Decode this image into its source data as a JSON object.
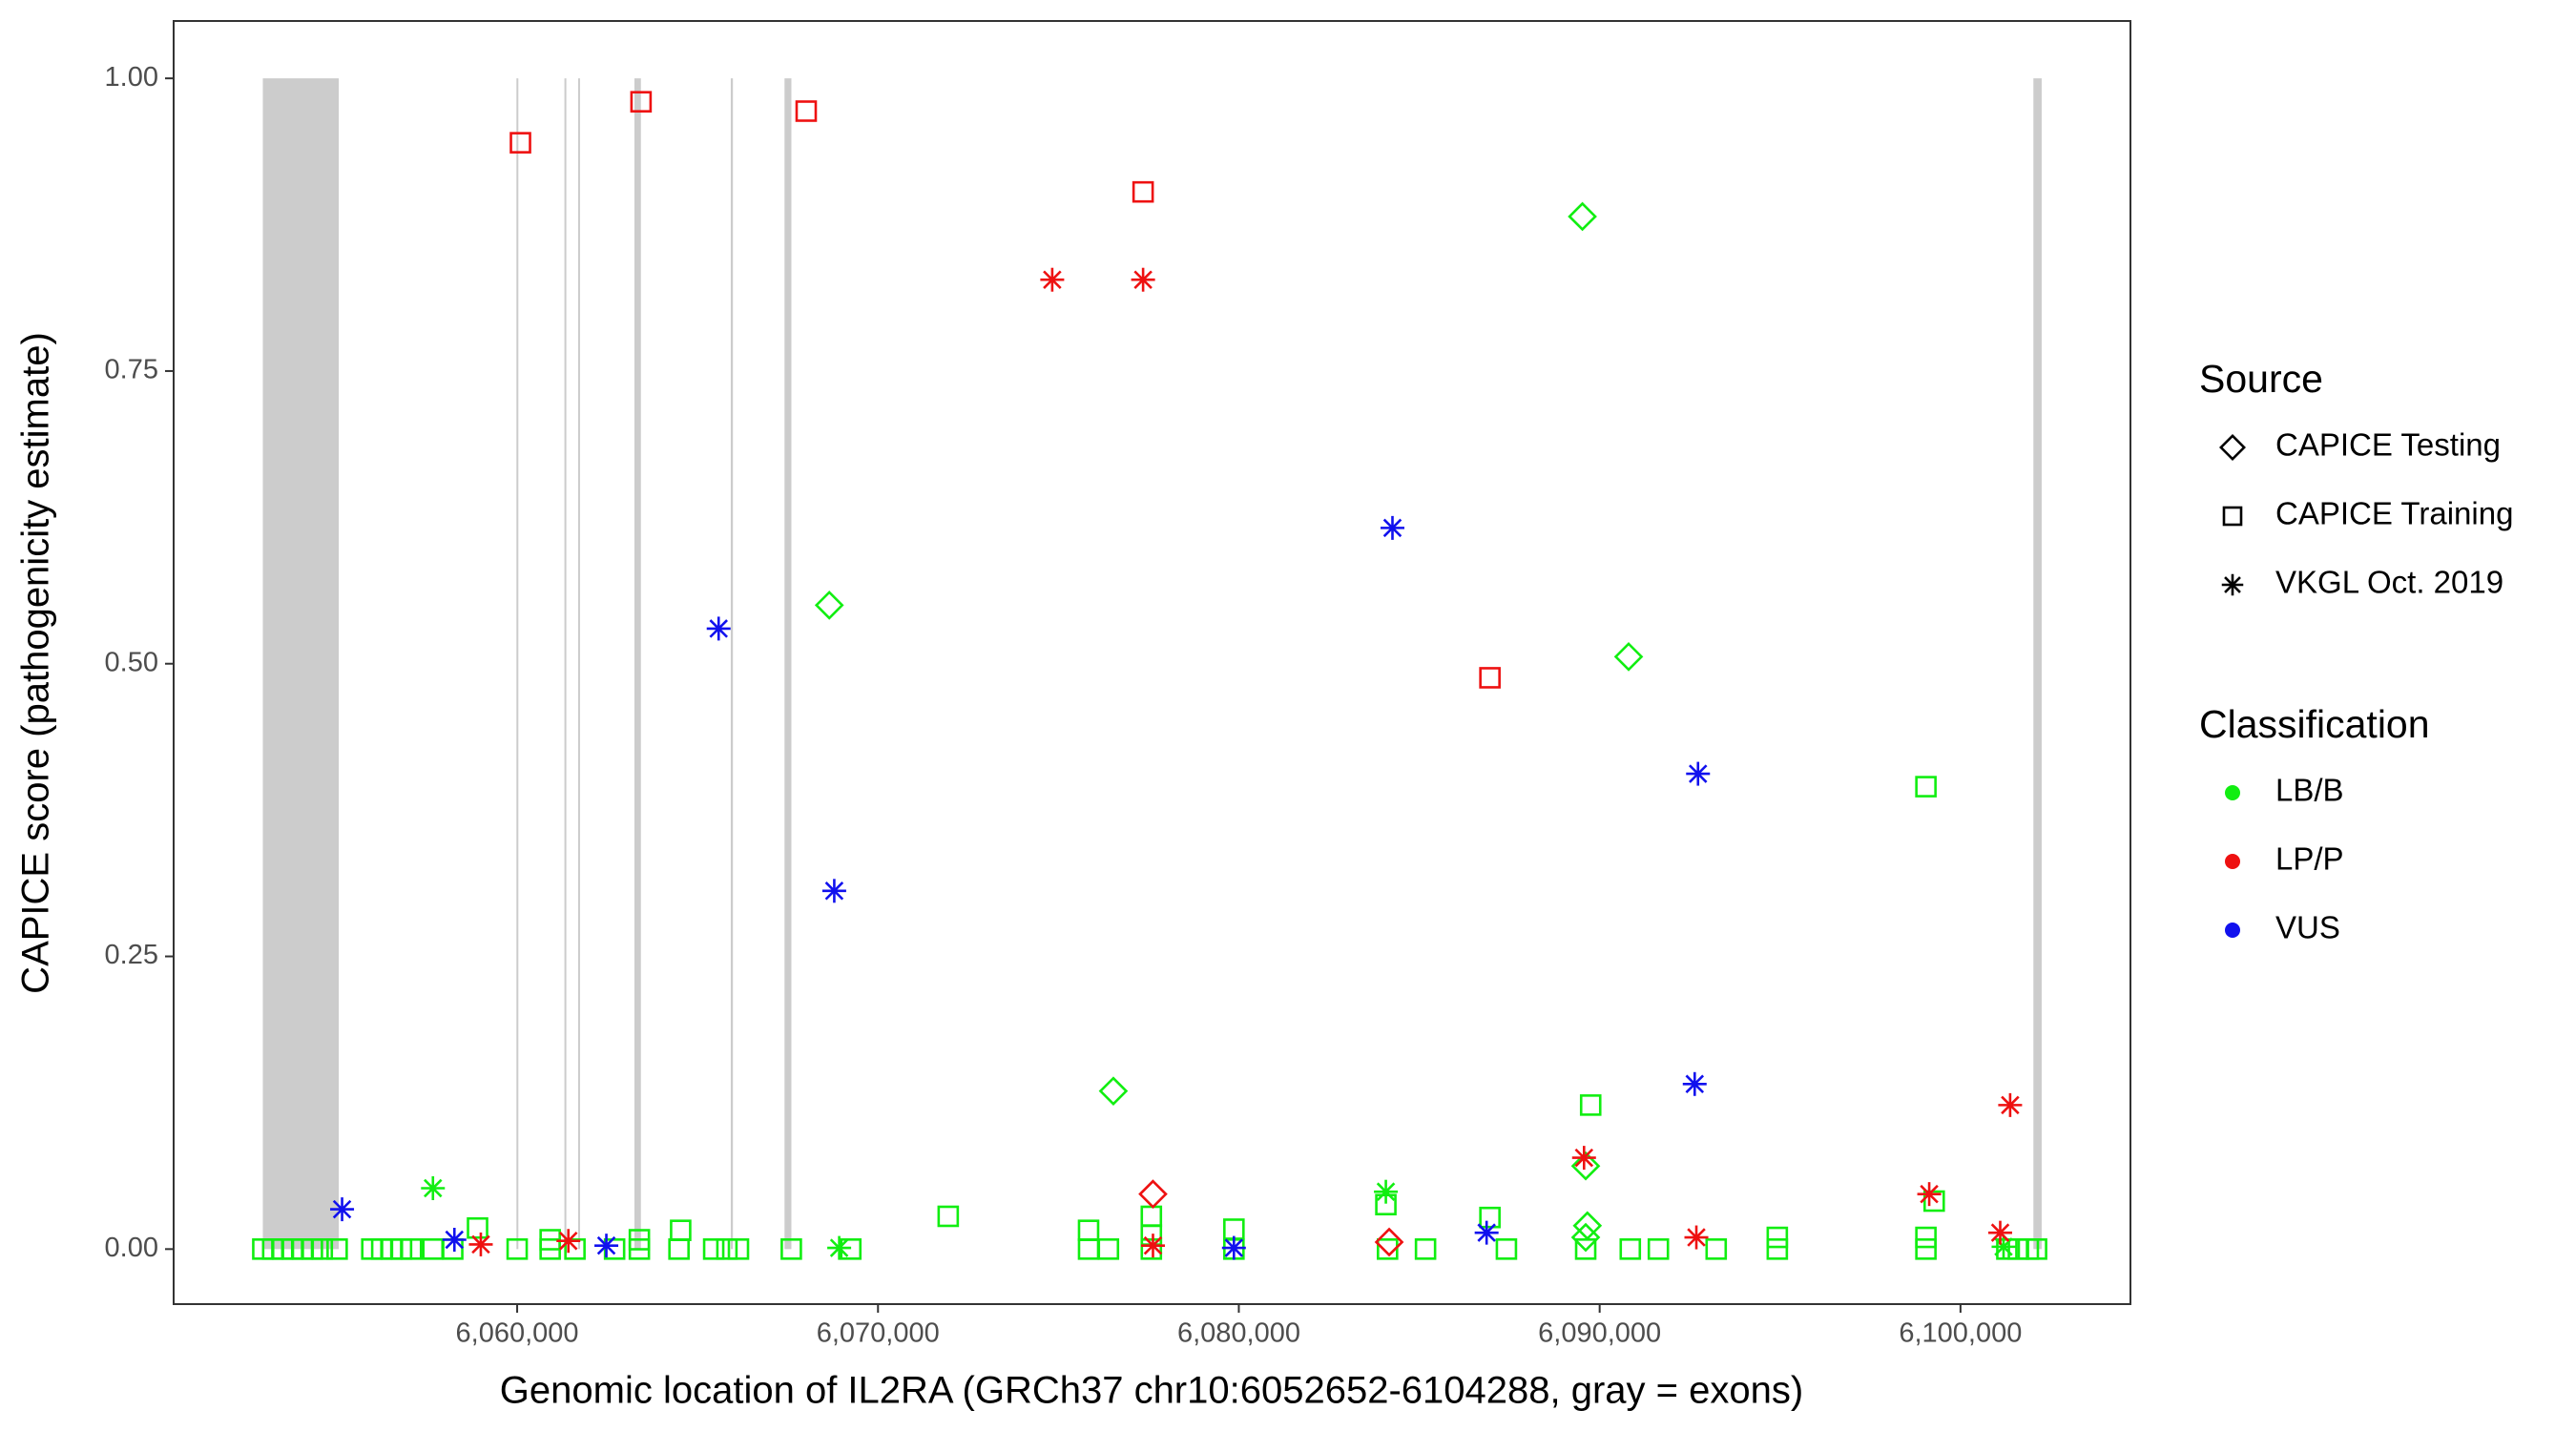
{
  "chart_data": {
    "type": "scatter",
    "x_label": "Genomic location of IL2RA (GRCh37 chr10:6052652-6104288, gray = exons)",
    "y_label": "CAPICE score (pathogenicity estimate)",
    "xlim": [
      6050480,
      6104710
    ],
    "ylim": [
      -0.047,
      1.049
    ],
    "xticks": [
      {
        "value": 6060000,
        "label": "6,060,000"
      },
      {
        "value": 6070000,
        "label": "6,070,000"
      },
      {
        "value": 6080000,
        "label": "6,080,000"
      },
      {
        "value": 6090000,
        "label": "6,090,000"
      },
      {
        "value": 6100000,
        "label": "6,100,000"
      }
    ],
    "yticks": [
      {
        "value": 0,
        "label": "0.00"
      },
      {
        "value": 0.25,
        "label": "0.25"
      },
      {
        "value": 0.5,
        "label": "0.50"
      },
      {
        "value": 0.75,
        "label": "0.75"
      },
      {
        "value": 1,
        "label": "1.00"
      }
    ],
    "grid": false,
    "exon_color": "#cccccc",
    "exons": [
      [
        6052951,
        6055057
      ],
      [
        6059980,
        6060030
      ],
      [
        6061310,
        6061350
      ],
      [
        6061690,
        6061720
      ],
      [
        6063250,
        6063430
      ],
      [
        6065920,
        6065980
      ],
      [
        6067410,
        6067600
      ],
      [
        6102020,
        6102250
      ]
    ],
    "legends": [
      {
        "title": "Source",
        "entries": [
          {
            "name": "CAPICE Testing",
            "shape": "diamond"
          },
          {
            "name": "CAPICE Training",
            "shape": "square"
          },
          {
            "name": "VKGL Oct. 2019",
            "shape": "asterisk"
          }
        ]
      },
      {
        "title": "Classification",
        "entries": [
          {
            "name": "LB/B",
            "color": "#11ee11"
          },
          {
            "name": "LP/P",
            "color": "#ee1111"
          },
          {
            "name": "VUS",
            "color": "#1111ee"
          }
        ]
      }
    ],
    "series": [
      {
        "source": "CAPICE Training",
        "classification": "LB/B",
        "x": [
          6052951,
          6053226,
          6053501,
          6053775,
          6054050,
          6054325,
          6054599,
          6055011,
          6055972,
          6056247,
          6056521,
          6056796,
          6057071,
          6057666,
          6058215,
          6060000,
          6060915,
          6061602,
          6062700,
          6063387,
          6064485,
          6065447,
          6065813,
          6066133,
          6067598,
          6069246,
          6075836,
          6076386,
          6077576,
          6079864,
          6084121,
          6085174,
          6087416,
          6089613,
          6090849,
          6091627,
          6093229,
          6094923,
          6099042,
          6101285,
          6101605,
          6101880,
          6102108,
          6089751,
          6099042,
          6071946,
          6077576,
          6086959,
          6084075,
          6058902,
          6064531,
          6075836,
          6079864,
          6094923,
          6099271,
          6099042,
          6060915,
          6063387,
          6077576
        ],
        "y": [
          0,
          0,
          0,
          0,
          0,
          0,
          0,
          0,
          0,
          0,
          0,
          0,
          0,
          0,
          0,
          0,
          0,
          0,
          0,
          0,
          0,
          0,
          0,
          0,
          0,
          0,
          0,
          0,
          0,
          0,
          0,
          0,
          0,
          0,
          0,
          0,
          0,
          0,
          0,
          0,
          0,
          0,
          0,
          0.123,
          0.395,
          0.028,
          0.028,
          0.027,
          0.038,
          0.018,
          0.016,
          0.016,
          0.017,
          0.01,
          0.041,
          0.01,
          0.008,
          0.008,
          0.012
        ]
      },
      {
        "source": "CAPICE Testing",
        "classification": "LB/B",
        "x": [
          6068651,
          6076523,
          6089522,
          6090803,
          6089613,
          6089660,
          6089613
        ],
        "y": [
          0.55,
          0.135,
          0.882,
          0.506,
          0.071,
          0.02,
          0.01
        ]
      },
      {
        "source": "VKGL Oct. 2019",
        "classification": "LB/B",
        "x": [
          6057666,
          6084075,
          6068925,
          6101193
        ],
        "y": [
          0.052,
          0.049,
          0.001,
          0.002
        ]
      },
      {
        "source": "CAPICE Training",
        "classification": "LP/P",
        "x": [
          6060092,
          6063433,
          6068010,
          6077347,
          6086959
        ],
        "y": [
          0.945,
          0.98,
          0.972,
          0.903,
          0.488
        ]
      },
      {
        "source": "CAPICE Testing",
        "classification": "LP/P",
        "x": [
          6077621,
          6084167
        ],
        "y": [
          0.047,
          0.006
        ]
      },
      {
        "source": "VKGL Oct. 2019",
        "classification": "LP/P",
        "x": [
          6074829,
          6077347,
          6058993,
          6061419,
          6077621,
          6089567,
          6092680,
          6099133,
          6101376,
          6101101
        ],
        "y": [
          0.828,
          0.828,
          0.004,
          0.007,
          0.003,
          0.078,
          0.01,
          0.047,
          0.123,
          0.014
        ]
      },
      {
        "source": "VKGL Oct. 2019",
        "classification": "VUS",
        "x": [
          6055148,
          6058261,
          6062472,
          6065584,
          6068788,
          6079864,
          6084258,
          6086867,
          6092726,
          6092634
        ],
        "y": [
          0.034,
          0.008,
          0.003,
          0.53,
          0.306,
          0.001,
          0.616,
          0.014,
          0.406,
          0.141
        ]
      }
    ]
  }
}
